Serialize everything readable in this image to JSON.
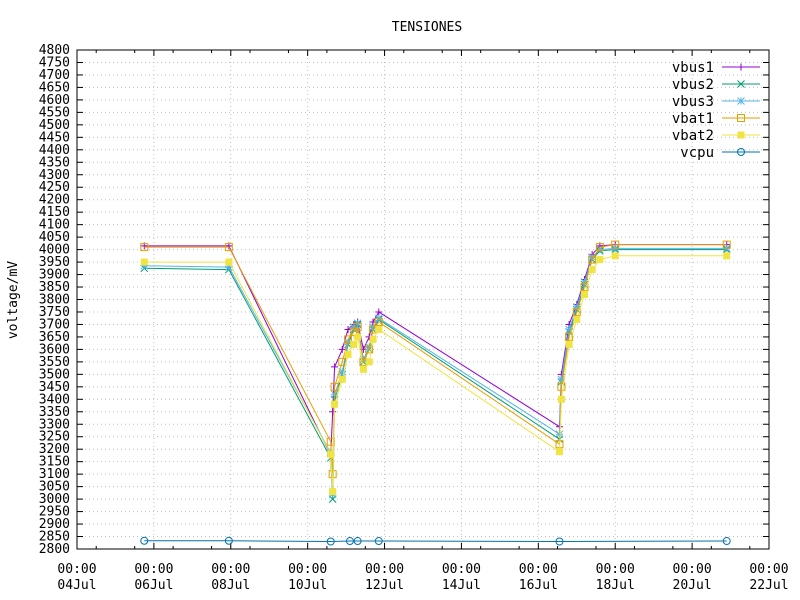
{
  "chart_data": {
    "type": "line",
    "title": "TENSIONES",
    "ylabel": "voltage/mV",
    "xlabel": "",
    "ylim": [
      2800,
      4800
    ],
    "yticks": [
      2800,
      2850,
      2900,
      2950,
      3000,
      3050,
      3100,
      3150,
      3200,
      3250,
      3300,
      3350,
      3400,
      3450,
      3500,
      3550,
      3600,
      3650,
      3700,
      3750,
      3800,
      3850,
      3900,
      3950,
      4000,
      4050,
      4100,
      4150,
      4200,
      4250,
      4300,
      4350,
      4400,
      4450,
      4500,
      4550,
      4600,
      4650,
      4700,
      4750,
      4800
    ],
    "xlim": [
      4,
      22
    ],
    "xticks": [
      {
        "x": 4,
        "time": "00:00",
        "date": "04Jul"
      },
      {
        "x": 6,
        "time": "00:00",
        "date": "06Jul"
      },
      {
        "x": 8,
        "time": "00:00",
        "date": "08Jul"
      },
      {
        "x": 10,
        "time": "00:00",
        "date": "10Jul"
      },
      {
        "x": 12,
        "time": "00:00",
        "date": "12Jul"
      },
      {
        "x": 14,
        "time": "00:00",
        "date": "14Jul"
      },
      {
        "x": 16,
        "time": "00:00",
        "date": "16Jul"
      },
      {
        "x": 18,
        "time": "00:00",
        "date": "18Jul"
      },
      {
        "x": 20,
        "time": "00:00",
        "date": "20Jul"
      },
      {
        "x": 22,
        "time": "00:00",
        "date": "22Jul"
      }
    ],
    "grid": true,
    "legend_position": "top-right",
    "series": [
      {
        "name": "vbus1",
        "color": "#9400d3",
        "marker": "plus",
        "points": [
          [
            5.75,
            4015
          ],
          [
            7.95,
            4015
          ],
          [
            10.6,
            3175
          ],
          [
            10.65,
            3350
          ],
          [
            10.7,
            3530
          ],
          [
            10.9,
            3600
          ],
          [
            11.05,
            3680
          ],
          [
            11.2,
            3700
          ],
          [
            11.3,
            3710
          ],
          [
            11.45,
            3600
          ],
          [
            11.6,
            3650
          ],
          [
            11.7,
            3710
          ],
          [
            11.85,
            3750
          ],
          [
            16.55,
            3290
          ],
          [
            16.6,
            3500
          ],
          [
            16.8,
            3700
          ],
          [
            17.0,
            3780
          ],
          [
            17.2,
            3880
          ],
          [
            17.4,
            3980
          ],
          [
            17.6,
            4015
          ],
          [
            18.0,
            4020
          ],
          [
            20.9,
            4020
          ]
        ]
      },
      {
        "name": "vbus2",
        "color": "#009e73",
        "marker": "x",
        "points": [
          [
            5.75,
            3925
          ],
          [
            7.95,
            3920
          ],
          [
            10.6,
            3165
          ],
          [
            10.65,
            3000
          ],
          [
            10.7,
            3400
          ],
          [
            10.9,
            3500
          ],
          [
            11.05,
            3620
          ],
          [
            11.2,
            3680
          ],
          [
            11.3,
            3700
          ],
          [
            11.45,
            3550
          ],
          [
            11.6,
            3600
          ],
          [
            11.7,
            3680
          ],
          [
            11.85,
            3720
          ],
          [
            16.55,
            3240
          ],
          [
            16.6,
            3470
          ],
          [
            16.8,
            3670
          ],
          [
            17.0,
            3760
          ],
          [
            17.2,
            3860
          ],
          [
            17.4,
            3960
          ],
          [
            17.6,
            3995
          ],
          [
            18.0,
            4000
          ],
          [
            20.9,
            4000
          ]
        ]
      },
      {
        "name": "vbus3",
        "color": "#56b4e9",
        "marker": "star",
        "points": [
          [
            5.75,
            3935
          ],
          [
            7.95,
            3930
          ],
          [
            10.6,
            3185
          ],
          [
            10.65,
            3020
          ],
          [
            10.7,
            3420
          ],
          [
            10.9,
            3510
          ],
          [
            11.05,
            3630
          ],
          [
            11.2,
            3690
          ],
          [
            11.3,
            3705
          ],
          [
            11.45,
            3560
          ],
          [
            11.6,
            3610
          ],
          [
            11.7,
            3690
          ],
          [
            11.85,
            3725
          ],
          [
            16.55,
            3260
          ],
          [
            16.6,
            3480
          ],
          [
            16.8,
            3680
          ],
          [
            17.0,
            3770
          ],
          [
            17.2,
            3870
          ],
          [
            17.4,
            3970
          ],
          [
            17.6,
            4000
          ],
          [
            18.0,
            4005
          ],
          [
            20.9,
            4005
          ]
        ]
      },
      {
        "name": "vbat1",
        "color": "#e69f00",
        "marker": "open-square",
        "points": [
          [
            5.75,
            4010
          ],
          [
            7.95,
            4010
          ],
          [
            10.6,
            3230
          ],
          [
            10.65,
            3100
          ],
          [
            10.7,
            3450
          ],
          [
            10.9,
            3550
          ],
          [
            11.05,
            3640
          ],
          [
            11.2,
            3670
          ],
          [
            11.3,
            3690
          ],
          [
            11.45,
            3550
          ],
          [
            11.6,
            3600
          ],
          [
            11.7,
            3680
          ],
          [
            11.85,
            3710
          ],
          [
            16.55,
            3220
          ],
          [
            16.6,
            3450
          ],
          [
            16.8,
            3650
          ],
          [
            17.0,
            3750
          ],
          [
            17.2,
            3850
          ],
          [
            17.4,
            3960
          ],
          [
            17.6,
            4010
          ],
          [
            18.0,
            4020
          ],
          [
            20.9,
            4020
          ]
        ]
      },
      {
        "name": "vbat2",
        "color": "#f0e442",
        "marker": "filled-square",
        "points": [
          [
            5.75,
            3950
          ],
          [
            7.95,
            3950
          ],
          [
            10.6,
            3180
          ],
          [
            10.65,
            3030
          ],
          [
            10.7,
            3380
          ],
          [
            10.9,
            3480
          ],
          [
            11.05,
            3580
          ],
          [
            11.2,
            3620
          ],
          [
            11.3,
            3650
          ],
          [
            11.45,
            3520
          ],
          [
            11.6,
            3550
          ],
          [
            11.7,
            3640
          ],
          [
            11.85,
            3680
          ],
          [
            16.55,
            3190
          ],
          [
            16.6,
            3400
          ],
          [
            16.8,
            3620
          ],
          [
            17.0,
            3720
          ],
          [
            17.2,
            3820
          ],
          [
            17.4,
            3920
          ],
          [
            17.6,
            3960
          ],
          [
            18.0,
            3975
          ],
          [
            20.9,
            3975
          ]
        ]
      },
      {
        "name": "vcpu",
        "color": "#0072b2",
        "marker": "circle",
        "points": [
          [
            5.75,
            2833
          ],
          [
            7.95,
            2833
          ],
          [
            10.6,
            2830
          ],
          [
            11.1,
            2832
          ],
          [
            11.3,
            2832
          ],
          [
            11.85,
            2832
          ],
          [
            16.55,
            2830
          ],
          [
            20.9,
            2832
          ]
        ]
      }
    ]
  }
}
